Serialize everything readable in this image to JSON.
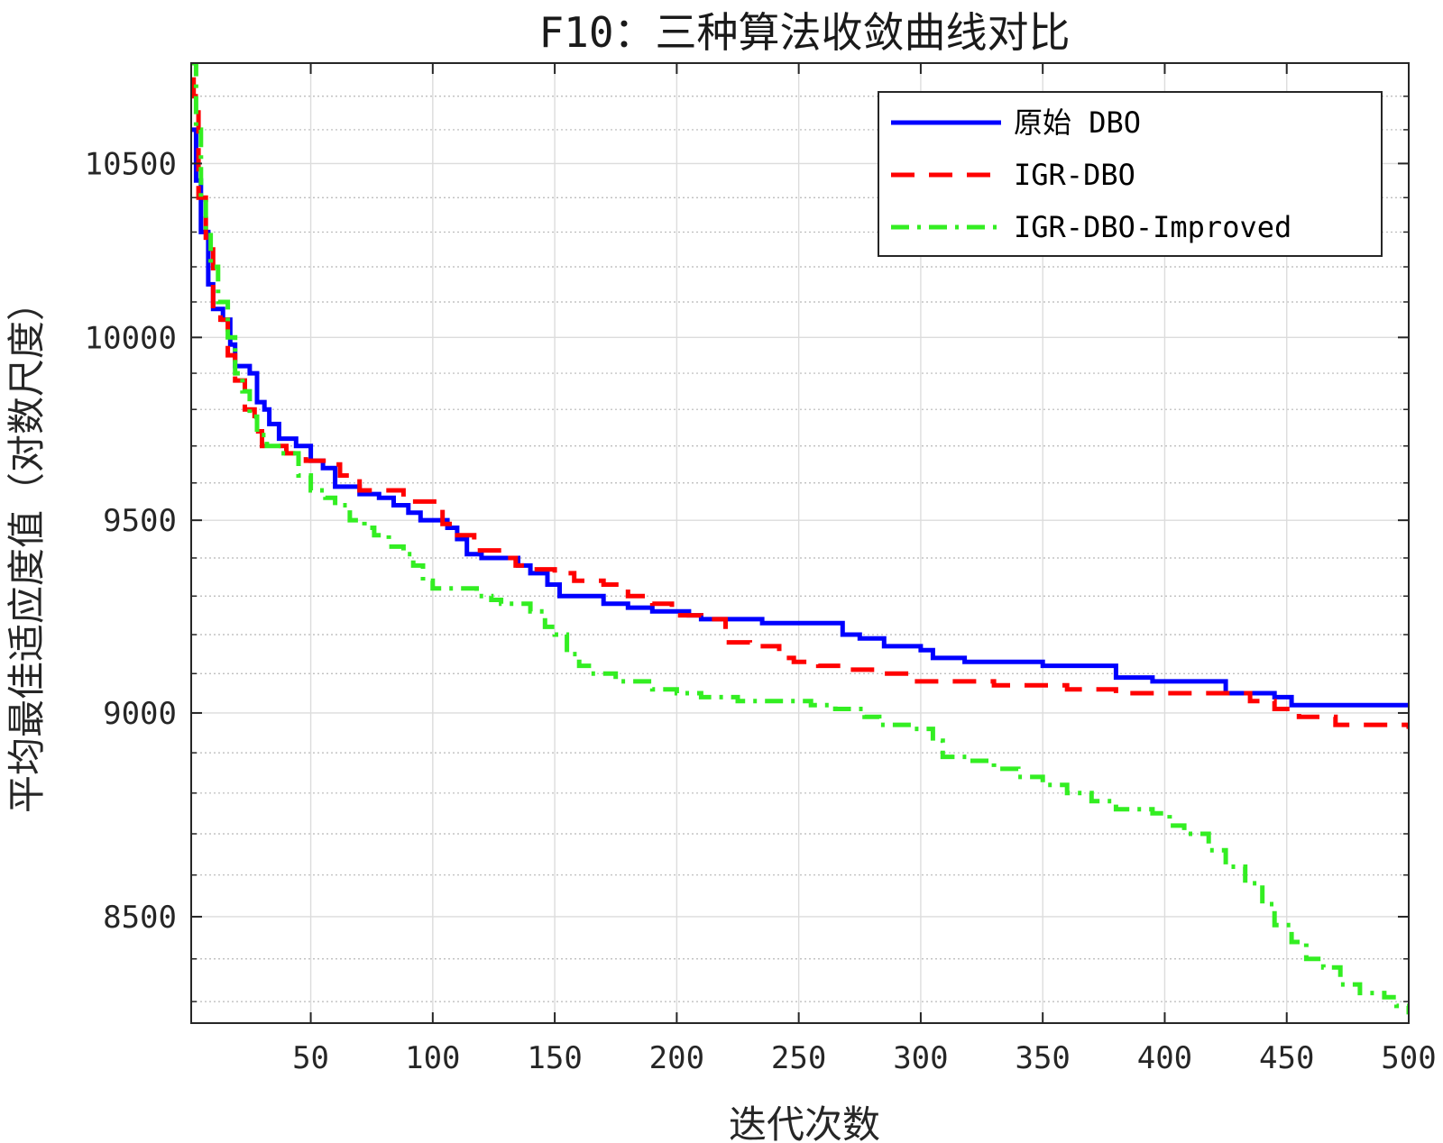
{
  "chart_data": {
    "type": "line",
    "title": "F10：三种算法收敛曲线对比",
    "xlabel": "迭代次数",
    "ylabel": "平均最佳适应度值（对数尺度）",
    "xlim": [
      1,
      500
    ],
    "ylim": [
      8250,
      10800
    ],
    "y_scale": "log",
    "xticks": [
      50,
      100,
      150,
      200,
      250,
      300,
      350,
      400,
      450,
      500
    ],
    "xtick_labels": [
      "50",
      "100",
      "150",
      "200",
      "250",
      "300",
      "350",
      "400",
      "450",
      "500"
    ],
    "yticks": [
      8500,
      9000,
      9500,
      10000,
      10500
    ],
    "ytick_labels": [
      "8500",
      "9000",
      "9500",
      "10000",
      "10500"
    ],
    "grid": true,
    "minor_grid": true,
    "legend_position": "top-right",
    "series": [
      {
        "name": "原始 DBO",
        "color": "#0000ff",
        "style": "solid",
        "points": [
          [
            1,
            10600
          ],
          [
            3,
            10450
          ],
          [
            5,
            10300
          ],
          [
            8,
            10150
          ],
          [
            10,
            10080
          ],
          [
            14,
            10050
          ],
          [
            17,
            9980
          ],
          [
            19,
            9920
          ],
          [
            25,
            9900
          ],
          [
            28,
            9820
          ],
          [
            31,
            9800
          ],
          [
            33,
            9760
          ],
          [
            37,
            9720
          ],
          [
            44,
            9700
          ],
          [
            50,
            9660
          ],
          [
            55,
            9640
          ],
          [
            60,
            9590
          ],
          [
            70,
            9570
          ],
          [
            78,
            9560
          ],
          [
            84,
            9540
          ],
          [
            90,
            9520
          ],
          [
            95,
            9500
          ],
          [
            102,
            9500
          ],
          [
            106,
            9480
          ],
          [
            110,
            9450
          ],
          [
            114,
            9410
          ],
          [
            120,
            9400
          ],
          [
            130,
            9400
          ],
          [
            135,
            9380
          ],
          [
            140,
            9360
          ],
          [
            147,
            9330
          ],
          [
            152,
            9300
          ],
          [
            160,
            9300
          ],
          [
            170,
            9280
          ],
          [
            180,
            9270
          ],
          [
            190,
            9260
          ],
          [
            200,
            9260
          ],
          [
            205,
            9250
          ],
          [
            210,
            9240
          ],
          [
            225,
            9240
          ],
          [
            235,
            9230
          ],
          [
            260,
            9230
          ],
          [
            268,
            9200
          ],
          [
            275,
            9190
          ],
          [
            285,
            9170
          ],
          [
            300,
            9160
          ],
          [
            305,
            9140
          ],
          [
            318,
            9130
          ],
          [
            345,
            9130
          ],
          [
            350,
            9120
          ],
          [
            375,
            9120
          ],
          [
            380,
            9090
          ],
          [
            395,
            9080
          ],
          [
            420,
            9080
          ],
          [
            425,
            9050
          ],
          [
            445,
            9040
          ],
          [
            452,
            9020
          ],
          [
            500,
            9020
          ]
        ]
      },
      {
        "name": "IGR-DBO",
        "color": "#ff0000",
        "style": "dashed",
        "points": [
          [
            1,
            10750
          ],
          [
            2,
            10700
          ],
          [
            4,
            10400
          ],
          [
            7,
            10250
          ],
          [
            10,
            10080
          ],
          [
            13,
            10050
          ],
          [
            16,
            9950
          ],
          [
            19,
            9880
          ],
          [
            23,
            9800
          ],
          [
            27,
            9740
          ],
          [
            30,
            9700
          ],
          [
            36,
            9700
          ],
          [
            40,
            9680
          ],
          [
            48,
            9660
          ],
          [
            58,
            9650
          ],
          [
            62,
            9620
          ],
          [
            70,
            9580
          ],
          [
            80,
            9580
          ],
          [
            88,
            9550
          ],
          [
            100,
            9550
          ],
          [
            104,
            9490
          ],
          [
            110,
            9460
          ],
          [
            117,
            9420
          ],
          [
            130,
            9400
          ],
          [
            134,
            9380
          ],
          [
            140,
            9370
          ],
          [
            150,
            9360
          ],
          [
            158,
            9340
          ],
          [
            170,
            9330
          ],
          [
            180,
            9300
          ],
          [
            190,
            9280
          ],
          [
            198,
            9250
          ],
          [
            210,
            9240
          ],
          [
            220,
            9180
          ],
          [
            230,
            9170
          ],
          [
            242,
            9140
          ],
          [
            248,
            9130
          ],
          [
            258,
            9120
          ],
          [
            270,
            9110
          ],
          [
            280,
            9100
          ],
          [
            295,
            9080
          ],
          [
            310,
            9080
          ],
          [
            330,
            9070
          ],
          [
            360,
            9060
          ],
          [
            380,
            9050
          ],
          [
            420,
            9050
          ],
          [
            435,
            9030
          ],
          [
            445,
            9010
          ],
          [
            455,
            8990
          ],
          [
            470,
            8970
          ],
          [
            500,
            8960
          ]
        ]
      },
      {
        "name": "IGR-DBO-Improved",
        "color": "#33ee22",
        "style": "dashdot",
        "points": [
          [
            1,
            10800
          ],
          [
            3,
            10600
          ],
          [
            5,
            10400
          ],
          [
            7,
            10300
          ],
          [
            9,
            10200
          ],
          [
            12,
            10100
          ],
          [
            16,
            10000
          ],
          [
            19,
            9900
          ],
          [
            22,
            9850
          ],
          [
            25,
            9780
          ],
          [
            28,
            9730
          ],
          [
            32,
            9700
          ],
          [
            38,
            9680
          ],
          [
            45,
            9620
          ],
          [
            50,
            9580
          ],
          [
            56,
            9560
          ],
          [
            60,
            9540
          ],
          [
            66,
            9500
          ],
          [
            72,
            9480
          ],
          [
            76,
            9460
          ],
          [
            82,
            9430
          ],
          [
            88,
            9410
          ],
          [
            92,
            9380
          ],
          [
            96,
            9340
          ],
          [
            100,
            9320
          ],
          [
            110,
            9320
          ],
          [
            118,
            9300
          ],
          [
            124,
            9290
          ],
          [
            128,
            9280
          ],
          [
            140,
            9260
          ],
          [
            146,
            9220
          ],
          [
            150,
            9200
          ],
          [
            155,
            9150
          ],
          [
            160,
            9120
          ],
          [
            165,
            9100
          ],
          [
            175,
            9080
          ],
          [
            182,
            9080
          ],
          [
            190,
            9060
          ],
          [
            200,
            9050
          ],
          [
            210,
            9040
          ],
          [
            225,
            9030
          ],
          [
            240,
            9030
          ],
          [
            255,
            9020
          ],
          [
            265,
            9010
          ],
          [
            277,
            8990
          ],
          [
            283,
            8970
          ],
          [
            297,
            8960
          ],
          [
            305,
            8930
          ],
          [
            309,
            8890
          ],
          [
            320,
            8880
          ],
          [
            330,
            8860
          ],
          [
            340,
            8840
          ],
          [
            350,
            8820
          ],
          [
            360,
            8800
          ],
          [
            370,
            8780
          ],
          [
            380,
            8760
          ],
          [
            395,
            8750
          ],
          [
            402,
            8720
          ],
          [
            408,
            8700
          ],
          [
            418,
            8660
          ],
          [
            425,
            8620
          ],
          [
            433,
            8580
          ],
          [
            440,
            8530
          ],
          [
            445,
            8480
          ],
          [
            452,
            8440
          ],
          [
            458,
            8400
          ],
          [
            465,
            8380
          ],
          [
            472,
            8340
          ],
          [
            480,
            8320
          ],
          [
            490,
            8310
          ],
          [
            495,
            8290
          ],
          [
            500,
            8270
          ]
        ]
      }
    ]
  }
}
